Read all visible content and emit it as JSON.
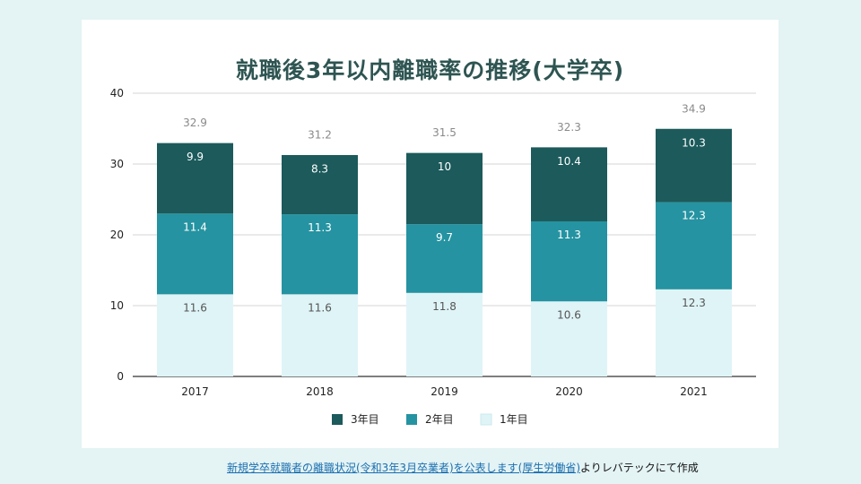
{
  "chart_data": {
    "type": "bar",
    "stacked": true,
    "title": "就職後3年以内離職率の推移(大学卒)",
    "categories": [
      "2017",
      "2018",
      "2019",
      "2020",
      "2021"
    ],
    "series": [
      {
        "name": "1年目",
        "values": [
          11.6,
          11.6,
          11.8,
          10.6,
          12.3
        ],
        "color": "#dff4f7",
        "label_color": "#555555"
      },
      {
        "name": "2年目",
        "values": [
          11.4,
          11.3,
          9.7,
          11.3,
          12.3
        ],
        "color": "#2593a1",
        "label_color": "#ffffff"
      },
      {
        "name": "3年目",
        "values": [
          9.9,
          8.3,
          10,
          10.4,
          10.3
        ],
        "color": "#1c5a5b",
        "label_color": "#ffffff"
      }
    ],
    "series_labels": [
      [
        "11.6",
        "11.6",
        "11.8",
        "10.6",
        "12.3"
      ],
      [
        "11.4",
        "11.3",
        "9.7",
        "11.3",
        "12.3"
      ],
      [
        "9.9",
        "8.3",
        "10",
        "10.4",
        "10.3"
      ]
    ],
    "totals": [
      "32.9",
      "31.2",
      "31.5",
      "32.3",
      "34.9"
    ],
    "ylim": [
      0,
      40
    ],
    "yticks": [
      "0",
      "10",
      "20",
      "30",
      "40"
    ],
    "xlabel": "",
    "ylabel": "",
    "grid": true,
    "legend_position": "bottom",
    "legend_order": [
      2,
      1,
      0
    ]
  },
  "source": {
    "link_text": "新規学卒就職者の離職状況(令和3年3月卒業者)を公表します(厚生労働省)",
    "suffix": "よりレバテックにて作成"
  }
}
